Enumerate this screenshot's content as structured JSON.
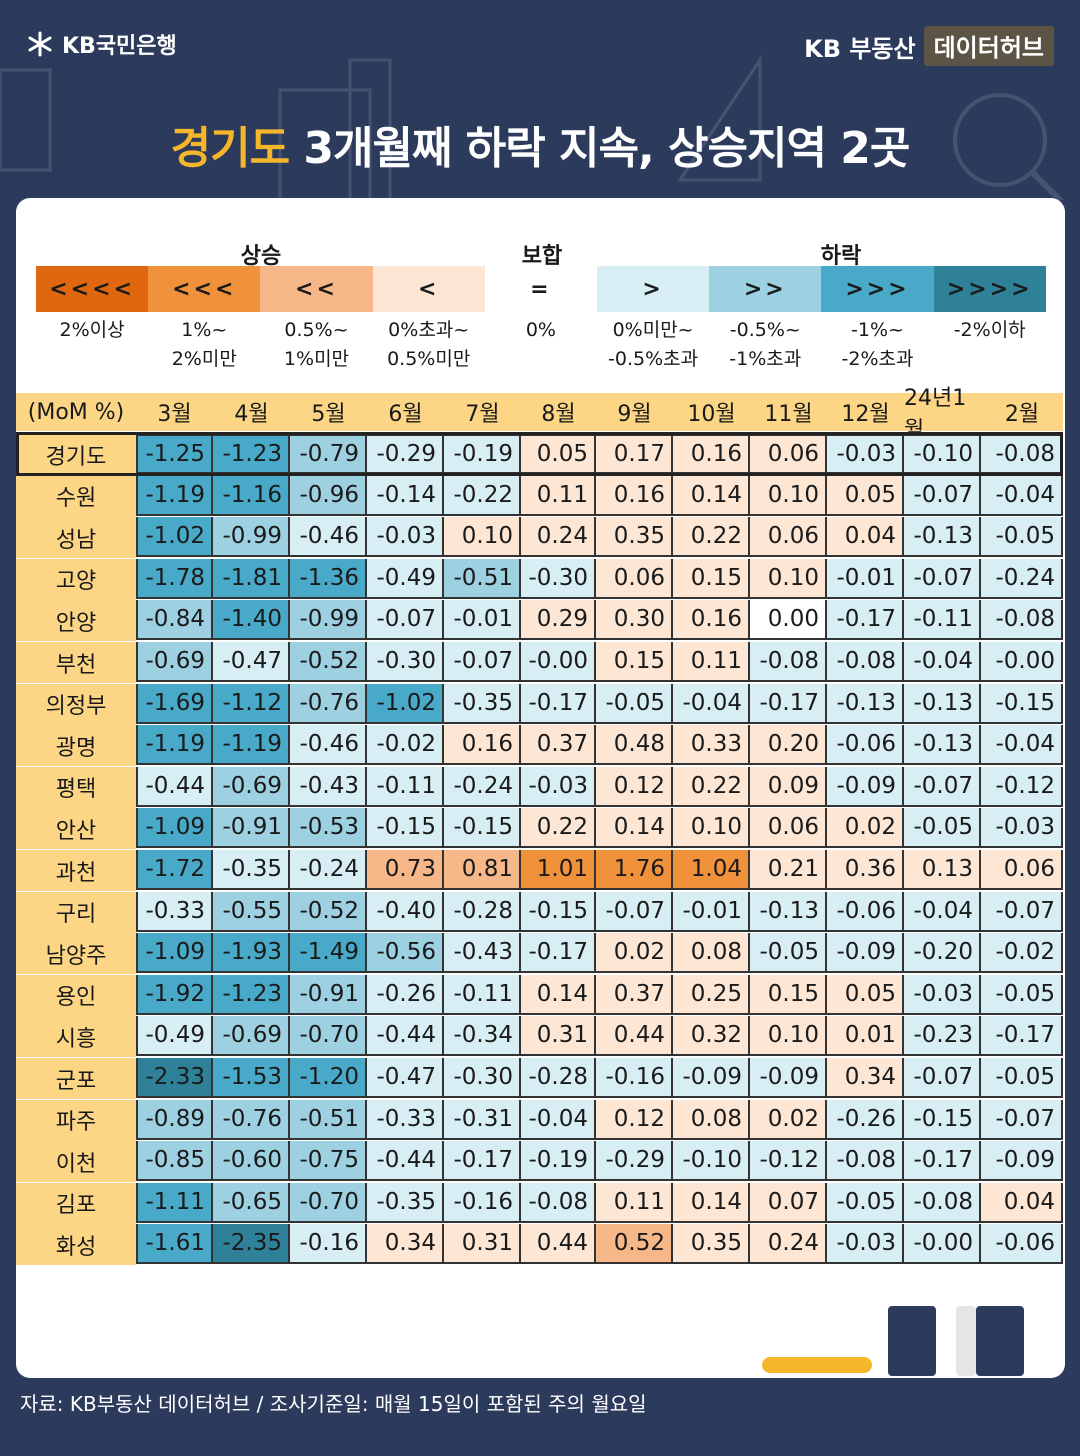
{
  "header": {
    "bank_logo": "KB국민은행",
    "hub_brand": "KB 부동산",
    "hub_badge": "데이터허브"
  },
  "title": {
    "highlight": "경기도",
    "rest": " 3개월째 하락 지속, 상승지역 2곳"
  },
  "legend": {
    "groups": {
      "rise": "상승",
      "flat": "보합",
      "fall": "하락"
    },
    "boxes": [
      {
        "symbol": "<<<<",
        "label_1": "2%이상",
        "label_2": "",
        "color": "#e0670f"
      },
      {
        "symbol": "<<<",
        "label_1": "1%~",
        "label_2": "2%미만",
        "color": "#f0913c"
      },
      {
        "symbol": "<<",
        "label_1": "0.5%~",
        "label_2": "1%미만",
        "color": "#f6b888"
      },
      {
        "symbol": "<",
        "label_1": "0%초과~",
        "label_2": "0.5%미만",
        "color": "#fde6d4"
      },
      {
        "symbol": "=",
        "label_1": "0%",
        "label_2": "",
        "color": "#ffffff"
      },
      {
        "symbol": ">",
        "label_1": "0%미만~",
        "label_2": "-0.5%초과",
        "color": "#d8eef5"
      },
      {
        "symbol": ">>",
        "label_1": "-0.5%~",
        "label_2": "-1%초과",
        "color": "#9dd0e1"
      },
      {
        "symbol": ">>>",
        "label_1": "-1%~",
        "label_2": "-2%초과",
        "color": "#48a9c8"
      },
      {
        "symbol": ">>>>",
        "label_1": "-2%이하",
        "label_2": "",
        "color": "#2e8199"
      }
    ]
  },
  "chart_data": {
    "type": "table",
    "title": "경기도 3개월째 하락 지속, 상승지역 2곳",
    "corner_label": "(MoM %)",
    "columns": [
      "3월",
      "4월",
      "5월",
      "6월",
      "7월",
      "8월",
      "9월",
      "10월",
      "11월",
      "12월",
      "24년1월",
      "2월"
    ],
    "rows": [
      {
        "region": "경기도",
        "values": [
          "-1.25",
          "-1.23",
          "-0.79",
          "-0.29",
          "-0.19",
          "0.05",
          "0.17",
          "0.16",
          "0.06",
          "-0.03",
          "-0.10",
          "-0.08"
        ]
      },
      {
        "region": "수원",
        "values": [
          "-1.19",
          "-1.16",
          "-0.96",
          "-0.14",
          "-0.22",
          "0.11",
          "0.16",
          "0.14",
          "0.10",
          "0.05",
          "-0.07",
          "-0.04"
        ]
      },
      {
        "region": "성남",
        "values": [
          "-1.02",
          "-0.99",
          "-0.46",
          "-0.03",
          "0.10",
          "0.24",
          "0.35",
          "0.22",
          "0.06",
          "0.04",
          "-0.13",
          "-0.05"
        ]
      },
      {
        "region": "고양",
        "values": [
          "-1.78",
          "-1.81",
          "-1.36",
          "-0.49",
          "-0.51",
          "-0.30",
          "0.06",
          "0.15",
          "0.10",
          "-0.01",
          "-0.07",
          "-0.24"
        ]
      },
      {
        "region": "안양",
        "values": [
          "-0.84",
          "-1.40",
          "-0.99",
          "-0.07",
          "-0.01",
          "0.29",
          "0.30",
          "0.16",
          "0.00",
          "-0.17",
          "-0.11",
          "-0.08"
        ]
      },
      {
        "region": "부천",
        "values": [
          "-0.69",
          "-0.47",
          "-0.52",
          "-0.30",
          "-0.07",
          "-0.00",
          "0.15",
          "0.11",
          "-0.08",
          "-0.08",
          "-0.04",
          "-0.00"
        ]
      },
      {
        "region": "의정부",
        "values": [
          "-1.69",
          "-1.12",
          "-0.76",
          "-1.02",
          "-0.35",
          "-0.17",
          "-0.05",
          "-0.04",
          "-0.17",
          "-0.13",
          "-0.13",
          "-0.15"
        ]
      },
      {
        "region": "광명",
        "values": [
          "-1.19",
          "-1.19",
          "-0.46",
          "-0.02",
          "0.16",
          "0.37",
          "0.48",
          "0.33",
          "0.20",
          "-0.06",
          "-0.13",
          "-0.04"
        ]
      },
      {
        "region": "평택",
        "values": [
          "-0.44",
          "-0.69",
          "-0.43",
          "-0.11",
          "-0.24",
          "-0.03",
          "0.12",
          "0.22",
          "0.09",
          "-0.09",
          "-0.07",
          "-0.12"
        ]
      },
      {
        "region": "안산",
        "values": [
          "-1.09",
          "-0.91",
          "-0.53",
          "-0.15",
          "-0.15",
          "0.22",
          "0.14",
          "0.10",
          "0.06",
          "0.02",
          "-0.05",
          "-0.03"
        ]
      },
      {
        "region": "과천",
        "values": [
          "-1.72",
          "-0.35",
          "-0.24",
          "0.73",
          "0.81",
          "1.01",
          "1.76",
          "1.04",
          "0.21",
          "0.36",
          "0.13",
          "0.06"
        ]
      },
      {
        "region": "구리",
        "values": [
          "-0.33",
          "-0.55",
          "-0.52",
          "-0.40",
          "-0.28",
          "-0.15",
          "-0.07",
          "-0.01",
          "-0.13",
          "-0.06",
          "-0.04",
          "-0.07"
        ]
      },
      {
        "region": "남양주",
        "values": [
          "-1.09",
          "-1.93",
          "-1.49",
          "-0.56",
          "-0.43",
          "-0.17",
          "0.02",
          "0.08",
          "-0.05",
          "-0.09",
          "-0.20",
          "-0.02"
        ]
      },
      {
        "region": "용인",
        "values": [
          "-1.92",
          "-1.23",
          "-0.91",
          "-0.26",
          "-0.11",
          "0.14",
          "0.37",
          "0.25",
          "0.15",
          "0.05",
          "-0.03",
          "-0.05"
        ]
      },
      {
        "region": "시흥",
        "values": [
          "-0.49",
          "-0.69",
          "-0.70",
          "-0.44",
          "-0.34",
          "0.31",
          "0.44",
          "0.32",
          "0.10",
          "0.01",
          "-0.23",
          "-0.17"
        ]
      },
      {
        "region": "군포",
        "values": [
          "-2.33",
          "-1.53",
          "-1.20",
          "-0.47",
          "-0.30",
          "-0.28",
          "-0.16",
          "-0.09",
          "-0.09",
          "0.34",
          "-0.07",
          "-0.05"
        ]
      },
      {
        "region": "파주",
        "values": [
          "-0.89",
          "-0.76",
          "-0.51",
          "-0.33",
          "-0.31",
          "-0.04",
          "0.12",
          "0.08",
          "0.02",
          "-0.26",
          "-0.15",
          "-0.07"
        ]
      },
      {
        "region": "이천",
        "values": [
          "-0.85",
          "-0.60",
          "-0.75",
          "-0.44",
          "-0.17",
          "-0.19",
          "-0.29",
          "-0.10",
          "-0.12",
          "-0.08",
          "-0.17",
          "-0.09"
        ]
      },
      {
        "region": "김포",
        "values": [
          "-1.11",
          "-0.65",
          "-0.70",
          "-0.35",
          "-0.16",
          "-0.08",
          "0.11",
          "0.14",
          "0.07",
          "-0.05",
          "-0.08",
          "0.04"
        ]
      },
      {
        "region": "화성",
        "values": [
          "-1.61",
          "-2.35",
          "-0.16",
          "0.34",
          "0.31",
          "0.44",
          "0.52",
          "0.35",
          "0.24",
          "-0.03",
          "-0.00",
          "-0.06"
        ]
      }
    ]
  },
  "footer": {
    "source": "자료: KB부동산 데이터허브 / 조사기준일: 매월 15일이 포함된 주의 월요일"
  }
}
